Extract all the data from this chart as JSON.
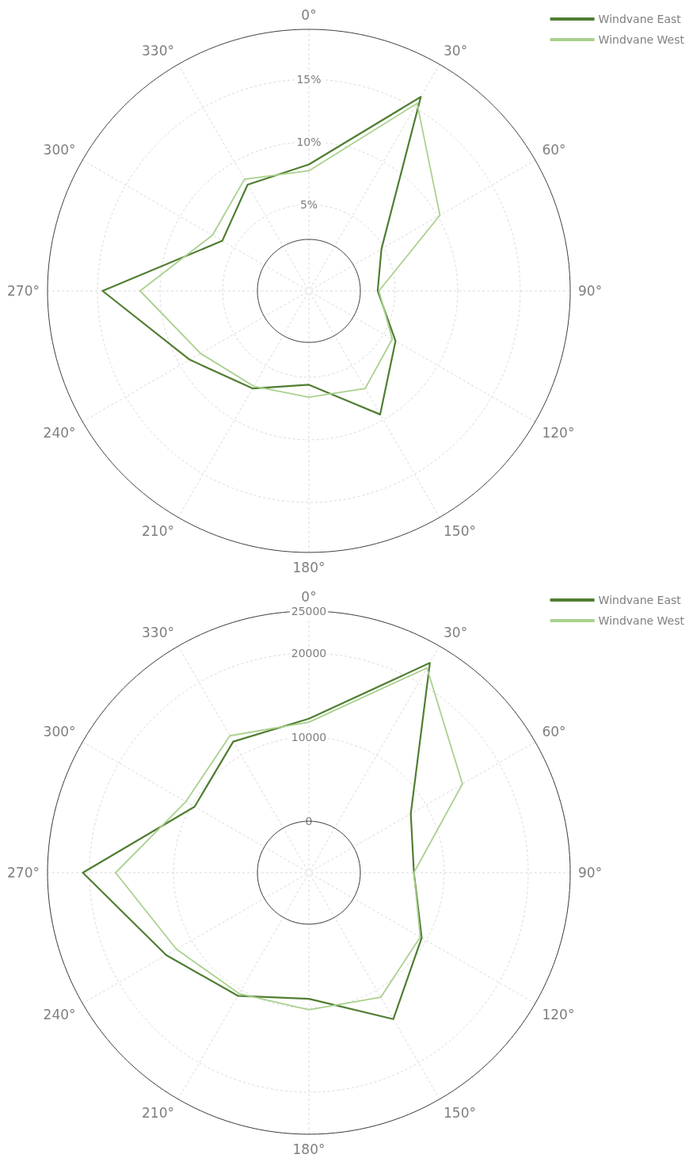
{
  "chart_data": [
    {
      "type": "radar",
      "categories": [
        "0°",
        "30°",
        "60°",
        "90°",
        "120°",
        "150°",
        "180°",
        "210°",
        "240°",
        "270°",
        "300°",
        "330°"
      ],
      "series": [
        {
          "name": "Windvane East",
          "color": "#507e32",
          "values": [
            8.2,
            16.0,
            4.8,
            3.6,
            6.1,
            9.5,
            5.6,
            7.1,
            9.1,
            14.6,
            6.1,
            7.9
          ]
        },
        {
          "name": "Windvane West",
          "color": "#a9d18e",
          "values": [
            7.7,
            15.4,
            10.2,
            3.7,
            5.8,
            7.1,
            6.6,
            6.9,
            8.1,
            11.6,
            7.0,
            8.4
          ]
        }
      ],
      "ylim": [
        -1.9,
        19
      ],
      "yticks": [
        {
          "value": 5,
          "label": "5%"
        },
        {
          "value": 10,
          "label": "10%"
        },
        {
          "value": 15,
          "label": "15%"
        }
      ],
      "grid": true,
      "legend": "top right",
      "line_style": "solid",
      "marker": "none"
    },
    {
      "type": "radar",
      "categories": [
        "0°",
        "30°",
        "60°",
        "90°",
        "120°",
        "150°",
        "180°",
        "210°",
        "240°",
        "270°",
        "300°",
        "330°"
      ],
      "series": [
        {
          "name": "Windvane East",
          "color": "#507e32",
          "values": [
            12200,
            22700,
            7900,
            6400,
            9400,
            14000,
            8900,
            10800,
            13500,
            20800,
            9600,
            11900
          ]
        },
        {
          "name": "Windvane West",
          "color": "#a9d18e",
          "values": [
            11800,
            22000,
            15000,
            6400,
            9200,
            11000,
            10200,
            10500,
            12100,
            16900,
            10800,
            12700
          ]
        }
      ],
      "ylim": [
        -6100,
        25000
      ],
      "yticks": [
        {
          "value": 0,
          "label": "0"
        },
        {
          "value": 10000,
          "label": "10000"
        },
        {
          "value": 20000,
          "label": "20000"
        },
        {
          "value": 25000,
          "label": "25000"
        }
      ],
      "grid": true,
      "legend": "top right",
      "line_style": "solid",
      "marker": "none"
    }
  ]
}
